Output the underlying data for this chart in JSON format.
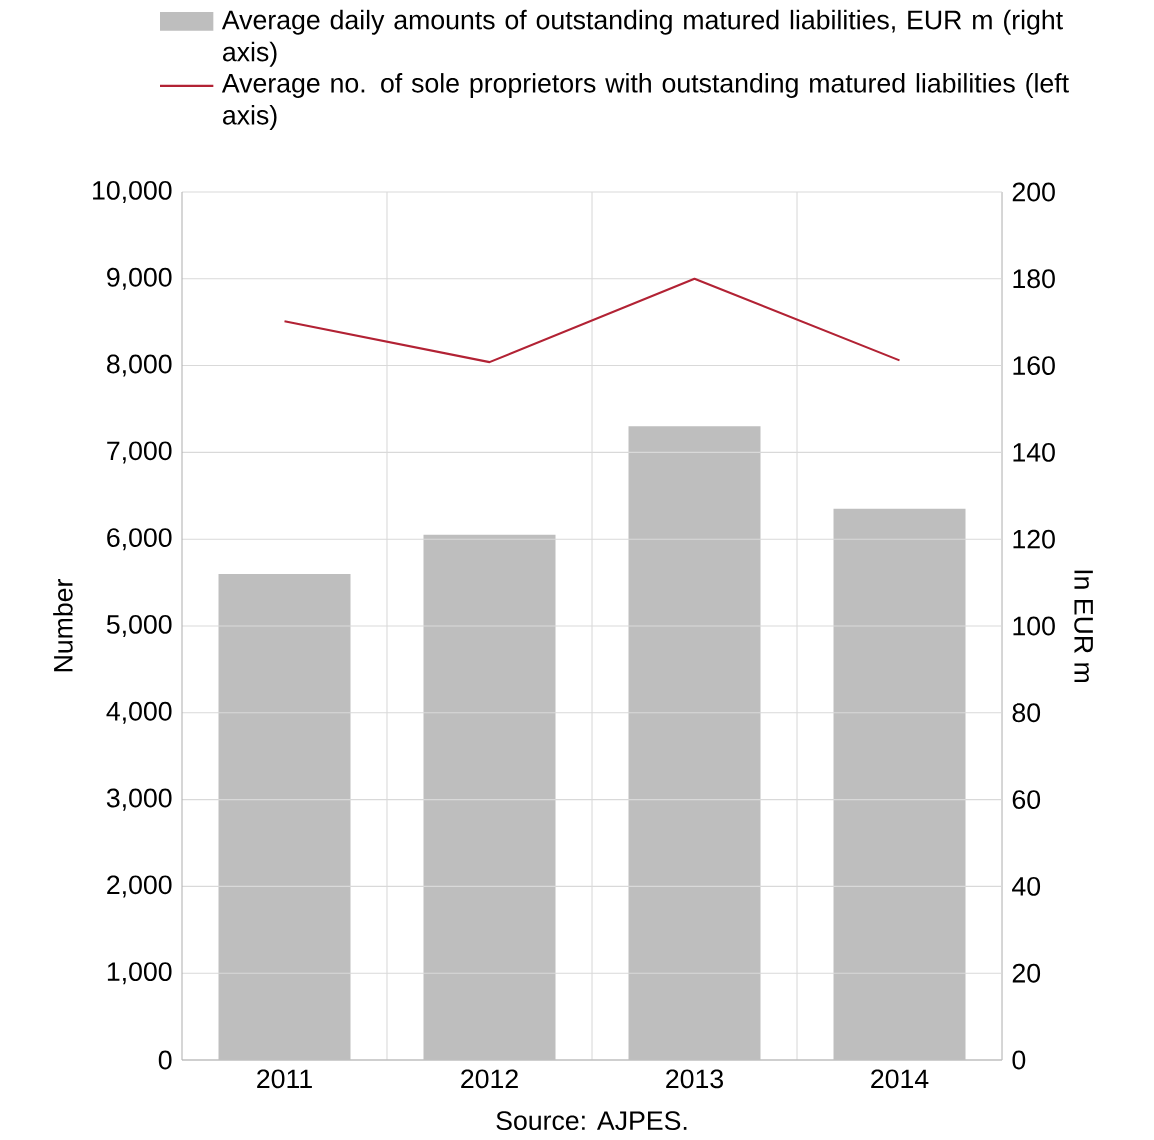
{
  "chart_data": {
    "type": "bar",
    "categories": [
      "2011",
      "2012",
      "2013",
      "2014"
    ],
    "series": [
      {
        "name": "Average daily amounts of outstanding matured liabilities, EUR m (right axis)",
        "color": "#bebebe",
        "values": [
          112,
          121,
          146,
          127
        ],
        "axis": "y2"
      },
      {
        "name": "Average no. of sole proprietors with outstanding matured liabilities (left axis)",
        "type": "line",
        "color": "#b22234",
        "values": [
          8510,
          8040,
          9000,
          8060
        ]
      }
    ],
    "ylabel": "Number",
    "y2label": "In EUR m",
    "ylim": [
      0,
      10000
    ],
    "yticks": [
      {
        "value": 0,
        "label": "0"
      },
      {
        "value": 1000,
        "label": "1,000"
      },
      {
        "value": 2000,
        "label": "2,000"
      },
      {
        "value": 3000,
        "label": "3,000"
      },
      {
        "value": 4000,
        "label": "4,000"
      },
      {
        "value": 5000,
        "label": "5,000"
      },
      {
        "value": 6000,
        "label": "6,000"
      },
      {
        "value": 7000,
        "label": "7,000"
      },
      {
        "value": 8000,
        "label": "8,000"
      },
      {
        "value": 9000,
        "label": "9,000"
      },
      {
        "value": 10000,
        "label": "10,000"
      }
    ],
    "y2lim": [
      0,
      200
    ],
    "y2ticks": [
      0,
      20,
      40,
      60,
      80,
      100,
      120,
      140,
      160,
      180,
      200
    ],
    "grid": true,
    "legend": "top",
    "marker": "none",
    "line_style": "solid",
    "annotations": [
      "Source: AJPES."
    ]
  }
}
